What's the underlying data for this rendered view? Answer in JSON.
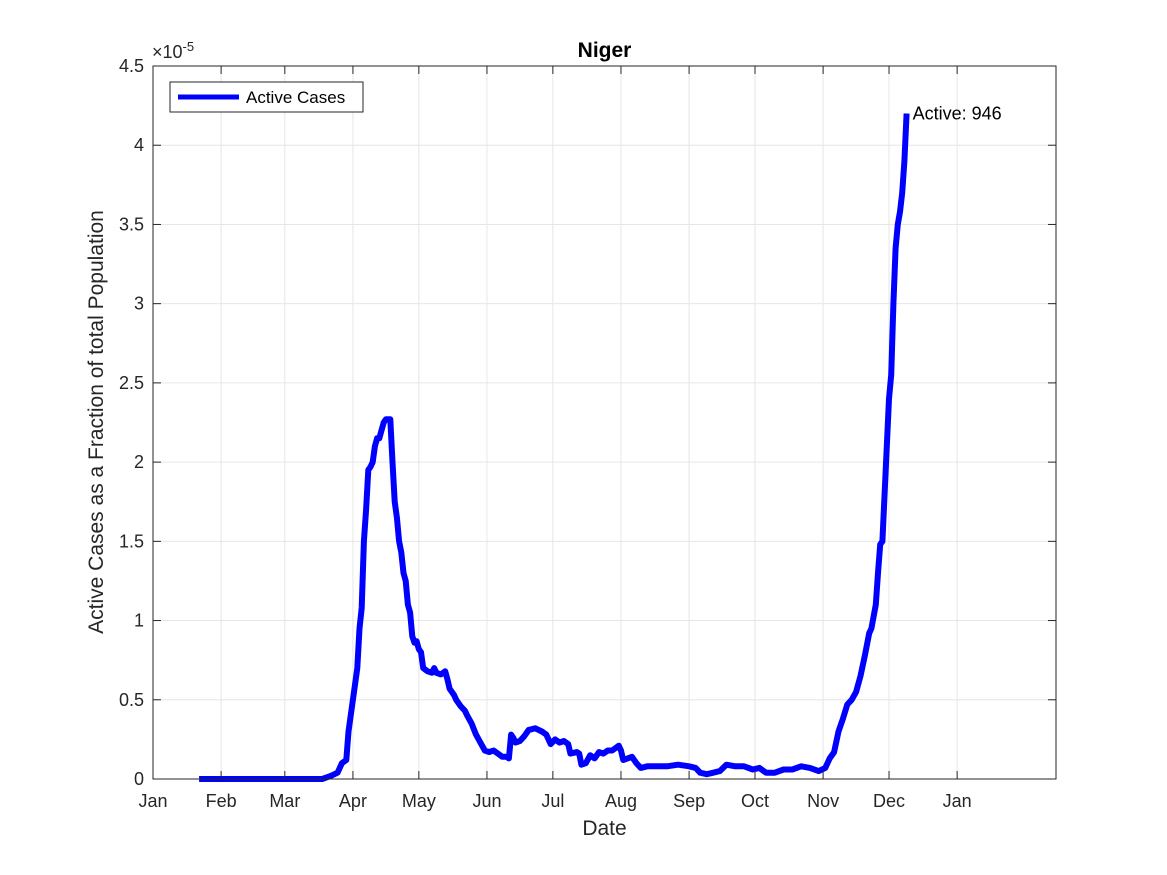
{
  "chart_data": {
    "type": "line",
    "title": "Niger",
    "xlabel": "Date",
    "ylabel": "Active Cases as a Fraction of total Population",
    "y_exponent_label": "×10",
    "y_exponent_power": "-5",
    "y_multiplier": 1e-05,
    "ylim": [
      0,
      4.5
    ],
    "y_ticks": [
      0,
      0.5,
      1,
      1.5,
      2,
      2.5,
      3,
      3.5,
      4,
      4.5
    ],
    "y_tick_labels": [
      "0",
      "0.5",
      "1",
      "1.5",
      "2",
      "2.5",
      "3",
      "3.5",
      "4",
      "4.5"
    ],
    "xlim": [
      "2020-01-01",
      "2021-02-15"
    ],
    "x_ticks": [
      "2020-01-01",
      "2020-02-01",
      "2020-03-01",
      "2020-04-01",
      "2020-05-01",
      "2020-06-01",
      "2020-07-01",
      "2020-08-01",
      "2020-09-01",
      "2020-10-01",
      "2020-11-01",
      "2020-12-01",
      "2021-01-01"
    ],
    "x_tick_labels": [
      "Jan",
      "Feb",
      "Mar",
      "Apr",
      "May",
      "Jun",
      "Jul",
      "Aug",
      "Sep",
      "Oct",
      "Nov",
      "Dec",
      "Jan"
    ],
    "grid": true,
    "legend_position": "top-left",
    "series": [
      {
        "name": "Active Cases",
        "color": "#0000ff",
        "points": [
          [
            "2020-01-22",
            0
          ],
          [
            "2020-02-15",
            0
          ],
          [
            "2020-03-10",
            0
          ],
          [
            "2020-03-18",
            0
          ],
          [
            "2020-03-22",
            0.02
          ],
          [
            "2020-03-25",
            0.04
          ],
          [
            "2020-03-27",
            0.1
          ],
          [
            "2020-03-29",
            0.12
          ],
          [
            "2020-03-30",
            0.3
          ],
          [
            "2020-04-01",
            0.5
          ],
          [
            "2020-04-03",
            0.7
          ],
          [
            "2020-04-04",
            0.95
          ],
          [
            "2020-04-05",
            1.08
          ],
          [
            "2020-04-06",
            1.5
          ],
          [
            "2020-04-07",
            1.7
          ],
          [
            "2020-04-08",
            1.95
          ],
          [
            "2020-04-09",
            1.97
          ],
          [
            "2020-04-10",
            2.0
          ],
          [
            "2020-04-11",
            2.1
          ],
          [
            "2020-04-12",
            2.15
          ],
          [
            "2020-04-13",
            2.15
          ],
          [
            "2020-04-14",
            2.2
          ],
          [
            "2020-04-15",
            2.25
          ],
          [
            "2020-04-16",
            2.27
          ],
          [
            "2020-04-18",
            2.27
          ],
          [
            "2020-04-19",
            2.0
          ],
          [
            "2020-04-20",
            1.75
          ],
          [
            "2020-04-21",
            1.65
          ],
          [
            "2020-04-22",
            1.5
          ],
          [
            "2020-04-23",
            1.43
          ],
          [
            "2020-04-24",
            1.3
          ],
          [
            "2020-04-25",
            1.25
          ],
          [
            "2020-04-26",
            1.1
          ],
          [
            "2020-04-27",
            1.05
          ],
          [
            "2020-04-28",
            0.9
          ],
          [
            "2020-04-29",
            0.86
          ],
          [
            "2020-04-30",
            0.87
          ],
          [
            "2020-05-01",
            0.82
          ],
          [
            "2020-05-02",
            0.8
          ],
          [
            "2020-05-03",
            0.7
          ],
          [
            "2020-05-05",
            0.68
          ],
          [
            "2020-05-07",
            0.67
          ],
          [
            "2020-05-08",
            0.7
          ],
          [
            "2020-05-09",
            0.67
          ],
          [
            "2020-05-11",
            0.66
          ],
          [
            "2020-05-13",
            0.68
          ],
          [
            "2020-05-14",
            0.63
          ],
          [
            "2020-05-15",
            0.57
          ],
          [
            "2020-05-17",
            0.53
          ],
          [
            "2020-05-18",
            0.5
          ],
          [
            "2020-05-20",
            0.46
          ],
          [
            "2020-05-22",
            0.43
          ],
          [
            "2020-05-23",
            0.4
          ],
          [
            "2020-05-25",
            0.35
          ],
          [
            "2020-05-27",
            0.28
          ],
          [
            "2020-05-29",
            0.23
          ],
          [
            "2020-05-31",
            0.18
          ],
          [
            "2020-06-02",
            0.17
          ],
          [
            "2020-06-04",
            0.18
          ],
          [
            "2020-06-06",
            0.16
          ],
          [
            "2020-06-08",
            0.14
          ],
          [
            "2020-06-10",
            0.14
          ],
          [
            "2020-06-11",
            0.13
          ],
          [
            "2020-06-12",
            0.28
          ],
          [
            "2020-06-13",
            0.26
          ],
          [
            "2020-06-14",
            0.23
          ],
          [
            "2020-06-16",
            0.24
          ],
          [
            "2020-06-18",
            0.27
          ],
          [
            "2020-06-20",
            0.31
          ],
          [
            "2020-06-23",
            0.32
          ],
          [
            "2020-06-26",
            0.3
          ],
          [
            "2020-06-28",
            0.28
          ],
          [
            "2020-06-30",
            0.22
          ],
          [
            "2020-07-02",
            0.25
          ],
          [
            "2020-07-04",
            0.23
          ],
          [
            "2020-07-06",
            0.24
          ],
          [
            "2020-07-08",
            0.22
          ],
          [
            "2020-07-09",
            0.16
          ],
          [
            "2020-07-12",
            0.17
          ],
          [
            "2020-07-13",
            0.16
          ],
          [
            "2020-07-14",
            0.09
          ],
          [
            "2020-07-16",
            0.1
          ],
          [
            "2020-07-18",
            0.15
          ],
          [
            "2020-07-20",
            0.13
          ],
          [
            "2020-07-22",
            0.17
          ],
          [
            "2020-07-24",
            0.16
          ],
          [
            "2020-07-26",
            0.18
          ],
          [
            "2020-07-28",
            0.18
          ],
          [
            "2020-07-31",
            0.21
          ],
          [
            "2020-08-01",
            0.18
          ],
          [
            "2020-08-02",
            0.12
          ],
          [
            "2020-08-04",
            0.13
          ],
          [
            "2020-08-06",
            0.14
          ],
          [
            "2020-08-08",
            0.1
          ],
          [
            "2020-08-10",
            0.07
          ],
          [
            "2020-08-13",
            0.08
          ],
          [
            "2020-08-17",
            0.08
          ],
          [
            "2020-08-22",
            0.08
          ],
          [
            "2020-08-27",
            0.09
          ],
          [
            "2020-09-01",
            0.08
          ],
          [
            "2020-09-04",
            0.07
          ],
          [
            "2020-09-06",
            0.04
          ],
          [
            "2020-09-09",
            0.03
          ],
          [
            "2020-09-12",
            0.04
          ],
          [
            "2020-09-15",
            0.05
          ],
          [
            "2020-09-18",
            0.09
          ],
          [
            "2020-09-22",
            0.08
          ],
          [
            "2020-09-26",
            0.08
          ],
          [
            "2020-09-30",
            0.06
          ],
          [
            "2020-10-03",
            0.07
          ],
          [
            "2020-10-06",
            0.04
          ],
          [
            "2020-10-10",
            0.04
          ],
          [
            "2020-10-14",
            0.06
          ],
          [
            "2020-10-18",
            0.06
          ],
          [
            "2020-10-22",
            0.08
          ],
          [
            "2020-10-26",
            0.07
          ],
          [
            "2020-10-30",
            0.05
          ],
          [
            "2020-11-02",
            0.07
          ],
          [
            "2020-11-04",
            0.13
          ],
          [
            "2020-11-06",
            0.17
          ],
          [
            "2020-11-08",
            0.3
          ],
          [
            "2020-11-10",
            0.38
          ],
          [
            "2020-11-12",
            0.47
          ],
          [
            "2020-11-14",
            0.5
          ],
          [
            "2020-11-16",
            0.55
          ],
          [
            "2020-11-18",
            0.65
          ],
          [
            "2020-11-20",
            0.78
          ],
          [
            "2020-11-22",
            0.92
          ],
          [
            "2020-11-23",
            0.95
          ],
          [
            "2020-11-25",
            1.1
          ],
          [
            "2020-11-26",
            1.3
          ],
          [
            "2020-11-27",
            1.48
          ],
          [
            "2020-11-28",
            1.5
          ],
          [
            "2020-11-29",
            1.8
          ],
          [
            "2020-11-30",
            2.1
          ],
          [
            "2020-12-01",
            2.4
          ],
          [
            "2020-12-02",
            2.55
          ],
          [
            "2020-12-03",
            3.0
          ],
          [
            "2020-12-04",
            3.35
          ],
          [
            "2020-12-05",
            3.5
          ],
          [
            "2020-12-06",
            3.58
          ],
          [
            "2020-12-07",
            3.7
          ],
          [
            "2020-12-08",
            3.9
          ],
          [
            "2020-12-09",
            4.2
          ]
        ]
      }
    ],
    "annotations": [
      {
        "text": "Active: 946",
        "x": "2020-12-09",
        "y": 4.2
      }
    ]
  }
}
